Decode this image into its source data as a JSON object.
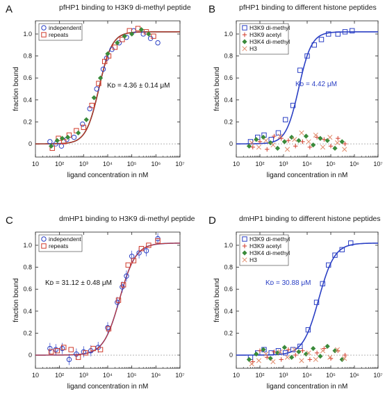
{
  "colors": {
    "blue": "#2a3fc4",
    "red": "#d03a2a",
    "green": "#3a8a3a",
    "salmon": "#e08a6a",
    "black": "#111111",
    "fitblue": "#2a3fc4"
  },
  "chart_data": [
    {
      "panel": "A",
      "type": "scatter",
      "title": "pfHP1 binding to H3K9 di-methyl peptide",
      "xlabel": "ligand concentration in nM",
      "ylabel": "fraction bound",
      "x_scale": "log",
      "xlim": [
        10,
        10000000
      ],
      "ylim": [
        -0.12,
        1.12
      ],
      "x_tick_labels": [
        "10",
        "10²",
        "10³",
        "10⁴",
        "10⁵",
        "10⁶",
        "10⁷"
      ],
      "y_tick_labels": [
        "0",
        "0.2",
        "0.4",
        "0.6",
        "0.8",
        "1.0"
      ],
      "annotation": "Kᴅ = 4.36 ± 0.14 μM",
      "legend_position": "top-left",
      "fit": {
        "kd_nM": 4360,
        "hill": 1.6,
        "colors": [
          "#111111",
          "#d03a2a"
        ]
      },
      "series": [
        {
          "name": "independent",
          "marker": "circle",
          "color": "#2a3fc4",
          "points": [
            [
              40,
              0.02
            ],
            [
              70,
              0.0
            ],
            [
              120,
              -0.02
            ],
            [
              200,
              0.04
            ],
            [
              400,
              0.06
            ],
            [
              900,
              0.18
            ],
            [
              1800,
              0.32
            ],
            [
              3500,
              0.5
            ],
            [
              6500,
              0.68
            ],
            [
              9000,
              0.78
            ],
            [
              15000,
              0.86
            ],
            [
              30000,
              0.92
            ],
            [
              60000,
              0.97
            ],
            [
              120000,
              1.03
            ],
            [
              300000,
              1.0
            ],
            [
              600000,
              0.96
            ],
            [
              1200000,
              0.92
            ]
          ]
        },
        {
          "name": "repeats",
          "marker": "square",
          "color": "#d03a2a",
          "points": [
            [
              50,
              -0.04
            ],
            [
              90,
              0.05
            ],
            [
              150,
              0.02
            ],
            [
              250,
              0.08
            ],
            [
              500,
              0.12
            ],
            [
              1000,
              0.15
            ],
            [
              2200,
              0.35
            ],
            [
              4200,
              0.55
            ],
            [
              7500,
              0.75
            ],
            [
              11000,
              0.8
            ],
            [
              20000,
              0.88
            ],
            [
              40000,
              0.95
            ],
            [
              80000,
              1.03
            ],
            [
              180000,
              1.05
            ],
            [
              400000,
              1.02
            ],
            [
              800000,
              0.98
            ]
          ]
        },
        {
          "name": "",
          "marker": "diamond",
          "color": "#3a8a3a",
          "points": [
            [
              45,
              -0.02
            ],
            [
              80,
              0.03
            ],
            [
              130,
              0.05
            ],
            [
              220,
              0.06
            ],
            [
              600,
              0.1
            ],
            [
              1300,
              0.22
            ],
            [
              2700,
              0.42
            ],
            [
              5000,
              0.6
            ],
            [
              10000,
              0.82
            ],
            [
              25000,
              0.92
            ],
            [
              50000,
              0.98
            ],
            [
              100000,
              1.0
            ],
            [
              250000,
              1.04
            ],
            [
              500000,
              1.0
            ]
          ]
        }
      ]
    },
    {
      "panel": "B",
      "type": "scatter",
      "title": "pfHP1 binding to different histone peptides",
      "xlabel": "ligand concentration in nM",
      "ylabel": "fraction bound",
      "x_scale": "log",
      "xlim": [
        10,
        10000000
      ],
      "ylim": [
        -0.12,
        1.12
      ],
      "x_tick_labels": [
        "10",
        "10²",
        "10³",
        "10⁴",
        "10⁵",
        "10⁶",
        "10⁷"
      ],
      "y_tick_labels": [
        "0",
        "0.2",
        "0.4",
        "0.6",
        "0.8",
        "1.0"
      ],
      "annotation": "Kᴅ = 4.42 μM",
      "legend_position": "top-left",
      "fit": {
        "kd_nM": 4420,
        "hill": 1.6,
        "colors": [
          "#2a3fc4"
        ]
      },
      "series": [
        {
          "name": "H3K9 di-methyl",
          "marker": "square-blue",
          "color": "#2a3fc4",
          "points": [
            [
              40,
              0.02
            ],
            [
              80,
              0.06
            ],
            [
              150,
              0.08
            ],
            [
              300,
              0.04
            ],
            [
              600,
              0.1
            ],
            [
              1200,
              0.22
            ],
            [
              2500,
              0.35
            ],
            [
              5000,
              0.67
            ],
            [
              10000,
              0.8
            ],
            [
              20000,
              0.9
            ],
            [
              40000,
              0.95
            ],
            [
              80000,
              1.0
            ],
            [
              200000,
              1.0
            ],
            [
              400000,
              1.02
            ],
            [
              800000,
              1.03
            ]
          ]
        },
        {
          "name": "H3K9 acetyl",
          "marker": "plus",
          "color": "#d03a2a",
          "points": [
            [
              50,
              -0.03
            ],
            [
              100,
              0.02
            ],
            [
              200,
              -0.05
            ],
            [
              400,
              0.07
            ],
            [
              800,
              0.05
            ],
            [
              1600,
              0.03
            ],
            [
              3200,
              -0.02
            ],
            [
              6400,
              0.02
            ],
            [
              13000,
              -0.03
            ],
            [
              26000,
              0.06
            ],
            [
              52000,
              0.04
            ],
            [
              100000,
              -0.02
            ],
            [
              200000,
              0.05
            ],
            [
              400000,
              0.0
            ]
          ]
        },
        {
          "name": "H3K4 di-methyl",
          "marker": "diamond",
          "color": "#3a8a3a",
          "points": [
            [
              35,
              -0.02
            ],
            [
              70,
              0.04
            ],
            [
              140,
              0.06
            ],
            [
              280,
              0.01
            ],
            [
              560,
              -0.04
            ],
            [
              1100,
              0.02
            ],
            [
              2200,
              0.06
            ],
            [
              4400,
              0.03
            ],
            [
              9000,
              0.07
            ],
            [
              18000,
              -0.01
            ],
            [
              36000,
              0.05
            ],
            [
              72000,
              0.03
            ],
            [
              150000,
              -0.04
            ],
            [
              300000,
              0.02
            ]
          ]
        },
        {
          "name": "H3",
          "marker": "x",
          "color": "#e08a6a",
          "points": [
            [
              45,
              0.01
            ],
            [
              90,
              -0.03
            ],
            [
              180,
              0.03
            ],
            [
              360,
              -0.01
            ],
            [
              720,
              0.07
            ],
            [
              1450,
              -0.05
            ],
            [
              2900,
              0.04
            ],
            [
              5800,
              0.1
            ],
            [
              11600,
              0.02
            ],
            [
              23000,
              0.08
            ],
            [
              46000,
              -0.03
            ],
            [
              92000,
              0.06
            ],
            [
              190000,
              0.01
            ],
            [
              380000,
              -0.05
            ]
          ]
        }
      ]
    },
    {
      "panel": "C",
      "type": "scatter",
      "title": "dmHP1 binding to H3K9 di-methyl peptide",
      "xlabel": "ligand concentration in nM",
      "ylabel": "fraction bound",
      "x_scale": "log",
      "xlim": [
        10,
        10000000
      ],
      "ylim": [
        -0.12,
        1.12
      ],
      "x_tick_labels": [
        "10",
        "10²",
        "10³",
        "10⁴",
        "10⁵",
        "10⁶",
        "10⁷"
      ],
      "y_tick_labels": [
        "0",
        "0.2",
        "0.4",
        "0.6",
        "0.8",
        "1.0"
      ],
      "annotation": "Kᴅ = 31.12 ± 0.48 μM",
      "legend_position": "top-left",
      "fit": {
        "kd_nM": 31120,
        "hill": 1.3,
        "colors": [
          "#2a3fc4",
          "#d03a2a"
        ]
      },
      "series": [
        {
          "name": "independent",
          "marker": "circle",
          "color": "#2a3fc4",
          "error_bars": true,
          "points": [
            [
              40,
              0.06
            ],
            [
              70,
              0.05
            ],
            [
              130,
              0.06
            ],
            [
              250,
              -0.04
            ],
            [
              500,
              0.01
            ],
            [
              1000,
              0.03
            ],
            [
              2000,
              0.04
            ],
            [
              4000,
              0.07
            ],
            [
              10000,
              0.25
            ],
            [
              25000,
              0.48
            ],
            [
              40000,
              0.62
            ],
            [
              60000,
              0.72
            ],
            [
              100000,
              0.9
            ],
            [
              200000,
              0.93
            ],
            [
              400000,
              0.95
            ],
            [
              1200000,
              1.06
            ]
          ]
        },
        {
          "name": "repeats",
          "marker": "square",
          "color": "#d03a2a",
          "points": [
            [
              45,
              0.03
            ],
            [
              80,
              0.04
            ],
            [
              150,
              0.07
            ],
            [
              300,
              0.05
            ],
            [
              600,
              -0.02
            ],
            [
              1200,
              0.02
            ],
            [
              2500,
              0.06
            ],
            [
              5000,
              0.05
            ],
            [
              11000,
              0.24
            ],
            [
              28000,
              0.5
            ],
            [
              45000,
              0.64
            ],
            [
              70000,
              0.82
            ],
            [
              120000,
              0.86
            ],
            [
              250000,
              0.97
            ],
            [
              500000,
              1.0
            ],
            [
              1200000,
              1.04
            ]
          ]
        }
      ]
    },
    {
      "panel": "D",
      "type": "scatter",
      "title": "dmHP1 binding to different histone peptides",
      "xlabel": "ligand concentration in nM",
      "ylabel": "fraction bound",
      "x_scale": "log",
      "xlim": [
        10,
        10000000
      ],
      "ylim": [
        -0.12,
        1.12
      ],
      "x_tick_labels": [
        "10",
        "10²",
        "10³",
        "10⁴",
        "10⁵",
        "10⁶",
        "10⁷"
      ],
      "y_tick_labels": [
        "0",
        "0.2",
        "0.4",
        "0.6",
        "0.8",
        "1.0"
      ],
      "annotation": "Kᴅ = 30.88 μM",
      "legend_position": "top-left",
      "fit": {
        "kd_nM": 30880,
        "hill": 1.3,
        "colors": [
          "#2a3fc4"
        ]
      },
      "series": [
        {
          "name": "H3K9 di-methyl",
          "marker": "square-blue",
          "color": "#2a3fc4",
          "points": [
            [
              40,
              -0.02
            ],
            [
              80,
              0.02
            ],
            [
              150,
              0.05
            ],
            [
              300,
              0.02
            ],
            [
              600,
              0.04
            ],
            [
              1200,
              0.02
            ],
            [
              2500,
              0.05
            ],
            [
              5000,
              0.08
            ],
            [
              11000,
              0.23
            ],
            [
              25000,
              0.48
            ],
            [
              45000,
              0.65
            ],
            [
              80000,
              0.82
            ],
            [
              150000,
              0.91
            ],
            [
              300000,
              0.96
            ],
            [
              700000,
              1.02
            ]
          ]
        },
        {
          "name": "H3K9 acetyl",
          "marker": "plus",
          "color": "#d03a2a",
          "points": [
            [
              50,
              -0.06
            ],
            [
              100,
              0.04
            ],
            [
              200,
              -0.02
            ],
            [
              400,
              0.03
            ],
            [
              800,
              -0.04
            ],
            [
              1600,
              0.05
            ],
            [
              3200,
              0.0
            ],
            [
              6400,
              0.04
            ],
            [
              13000,
              -0.04
            ],
            [
              26000,
              0.02
            ],
            [
              52000,
              0.06
            ],
            [
              100000,
              -0.03
            ],
            [
              200000,
              0.04
            ],
            [
              400000,
              0.0
            ]
          ]
        },
        {
          "name": "H3K4 di-methyl",
          "marker": "diamond",
          "color": "#3a8a3a",
          "points": [
            [
              35,
              -0.04
            ],
            [
              70,
              0.01
            ],
            [
              140,
              0.05
            ],
            [
              280,
              -0.03
            ],
            [
              560,
              0.02
            ],
            [
              1100,
              0.07
            ],
            [
              2200,
              -0.02
            ],
            [
              4400,
              0.03
            ],
            [
              9000,
              0.01
            ],
            [
              18000,
              0.06
            ],
            [
              36000,
              -0.01
            ],
            [
              72000,
              0.08
            ],
            [
              150000,
              0.04
            ],
            [
              300000,
              -0.04
            ]
          ]
        },
        {
          "name": "H3",
          "marker": "x",
          "color": "#e08a6a",
          "points": [
            [
              45,
              -0.08
            ],
            [
              90,
              -0.05
            ],
            [
              180,
              0.01
            ],
            [
              360,
              -0.06
            ],
            [
              720,
              0.03
            ],
            [
              1450,
              -0.02
            ],
            [
              2900,
              0.05
            ],
            [
              5800,
              -0.05
            ],
            [
              11600,
              0.02
            ],
            [
              23000,
              -0.04
            ],
            [
              46000,
              0.04
            ],
            [
              92000,
              -0.02
            ],
            [
              190000,
              0.05
            ],
            [
              380000,
              -0.03
            ]
          ]
        }
      ]
    }
  ]
}
